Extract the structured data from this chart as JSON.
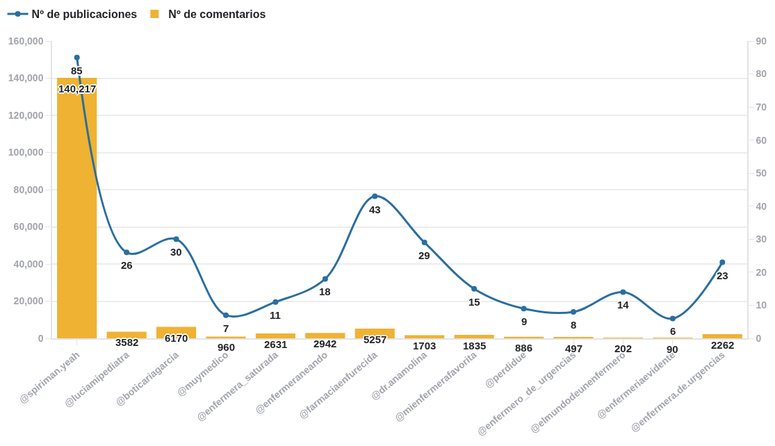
{
  "chart_data": {
    "type": "bar",
    "categories": [
      "@spiriman.yeah",
      "@luciamipediatra",
      "@boticariagarcia",
      "@muymedico",
      "@enfermera_saturada",
      "@enfermeraneando",
      "@farmaciaenfurecida",
      "@dr.anamolina",
      "@mienfermerafavorita",
      "@perdidue",
      "@enfermero_de_urgencias",
      "@elmundodeunenfermero",
      "@enfermeriaevidente",
      "@enfermera.de.urgencias"
    ],
    "series": [
      {
        "name": "Nº de publicaciones",
        "type": "line",
        "axis": "y2",
        "color": "#2b6e9f",
        "marker": "circle",
        "line_style": "solid",
        "values": [
          85,
          26,
          30,
          7,
          11,
          18,
          43,
          29,
          15,
          9,
          8,
          14,
          6,
          23
        ],
        "value_labels": [
          "85",
          "26",
          "30",
          "7",
          "11",
          "18",
          "43",
          "29",
          "15",
          "9",
          "8",
          "14",
          "6",
          "23"
        ]
      },
      {
        "name": "Nº de comentarios",
        "color": "#efb232",
        "values": [
          140217,
          3582,
          6170,
          960,
          2631,
          2942,
          5257,
          1703,
          1835,
          886,
          497,
          202,
          90,
          2262
        ],
        "value_labels": [
          "140,217",
          "3582",
          "6170",
          "960",
          "2631",
          "2942",
          "5257",
          "1703",
          "1835",
          "886",
          "497",
          "202",
          "90",
          "2262"
        ]
      }
    ],
    "ylim": [
      0,
      160000
    ],
    "yticks": [
      0,
      {
        "value": 20000,
        "label": "20,000"
      },
      {
        "value": 40000,
        "label": "40,000"
      },
      {
        "value": 60000,
        "label": "60,000"
      },
      {
        "value": 80000,
        "label": "80,000"
      },
      {
        "value": 100000,
        "label": "100,000"
      },
      {
        "value": 120000,
        "label": "120,000"
      },
      {
        "value": 140000,
        "label": "140,000"
      },
      {
        "value": 160000,
        "label": "160,000"
      }
    ],
    "y2lim": [
      0,
      90
    ],
    "y2ticks": [
      0,
      10,
      20,
      30,
      40,
      50,
      60,
      70,
      80,
      90
    ],
    "grid": "y",
    "legend": "top left"
  }
}
